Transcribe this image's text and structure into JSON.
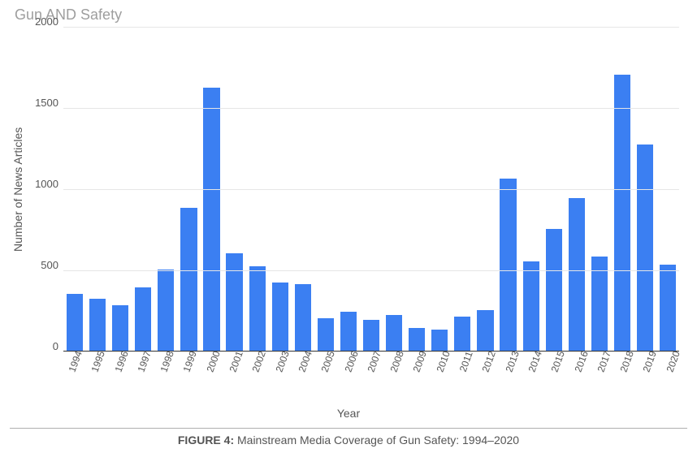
{
  "chart": {
    "type": "bar",
    "title": "Gun AND Safety",
    "title_color": "#9e9e9e",
    "title_fontsize": 18,
    "y_axis_label": "Number of News Articles",
    "x_axis_label": "Year",
    "label_fontsize": 14,
    "tick_fontsize": 13,
    "xtick_fontsize": 12,
    "xtick_rotation_deg": -70,
    "ylim": [
      0,
      2000
    ],
    "ytick_step": 500,
    "yticks": [
      2000,
      1500,
      1000,
      500,
      0
    ],
    "grid_color": "#e6e6e6",
    "axis_color": "#333333",
    "background_color": "#ffffff",
    "bar_color": "#3b7ff2",
    "bar_width": 0.72,
    "categories": [
      "1994",
      "1995",
      "1996",
      "1997",
      "1998",
      "1999",
      "2000",
      "2001",
      "2002",
      "2003",
      "2004",
      "2005",
      "2006",
      "2007",
      "2008",
      "2009",
      "2010",
      "2011",
      "2012",
      "2013",
      "2014",
      "2015",
      "2016",
      "2017",
      "2018",
      "2019",
      "2020"
    ],
    "values": [
      350,
      320,
      280,
      390,
      500,
      880,
      1620,
      600,
      520,
      420,
      410,
      200,
      240,
      190,
      220,
      140,
      130,
      210,
      250,
      1060,
      550,
      750,
      940,
      580,
      1700,
      1270,
      530
    ]
  },
  "caption": {
    "figure_label": "FIGURE 4:",
    "text": "Mainstream Media Coverage of Gun Safety: 1994–2020"
  }
}
